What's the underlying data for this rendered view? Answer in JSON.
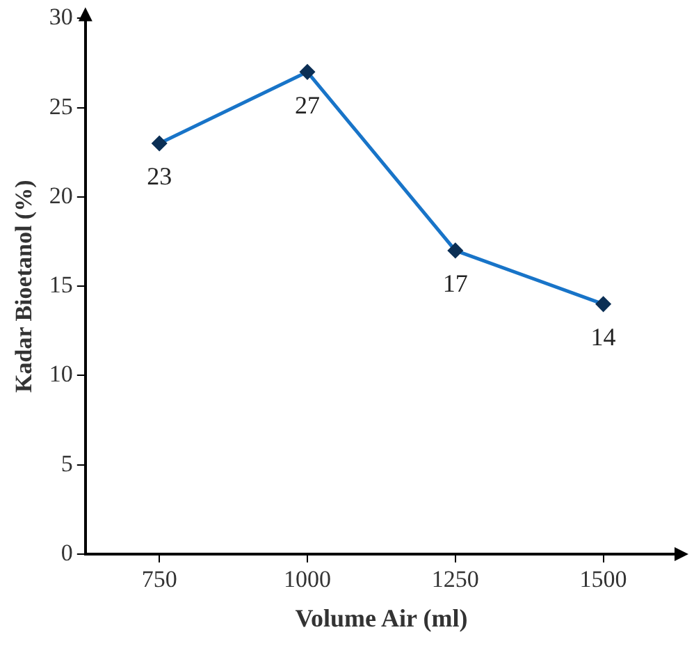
{
  "chart_data": {
    "type": "line",
    "xlabel": "Volume Air (ml)",
    "ylabel": "Kadar Bioetanol (%)",
    "categories": [
      "750",
      "1000",
      "1250",
      "1500"
    ],
    "series": [
      {
        "color": "#1874c8",
        "values": [
          23,
          27,
          17,
          14
        ]
      }
    ],
    "ylim": [
      0,
      30
    ],
    "yticks": [
      0,
      5,
      10,
      15,
      20,
      25,
      30
    ],
    "grid": false,
    "legend": false,
    "marker": "diamond",
    "line_style": "solid",
    "data_labels": true
  }
}
